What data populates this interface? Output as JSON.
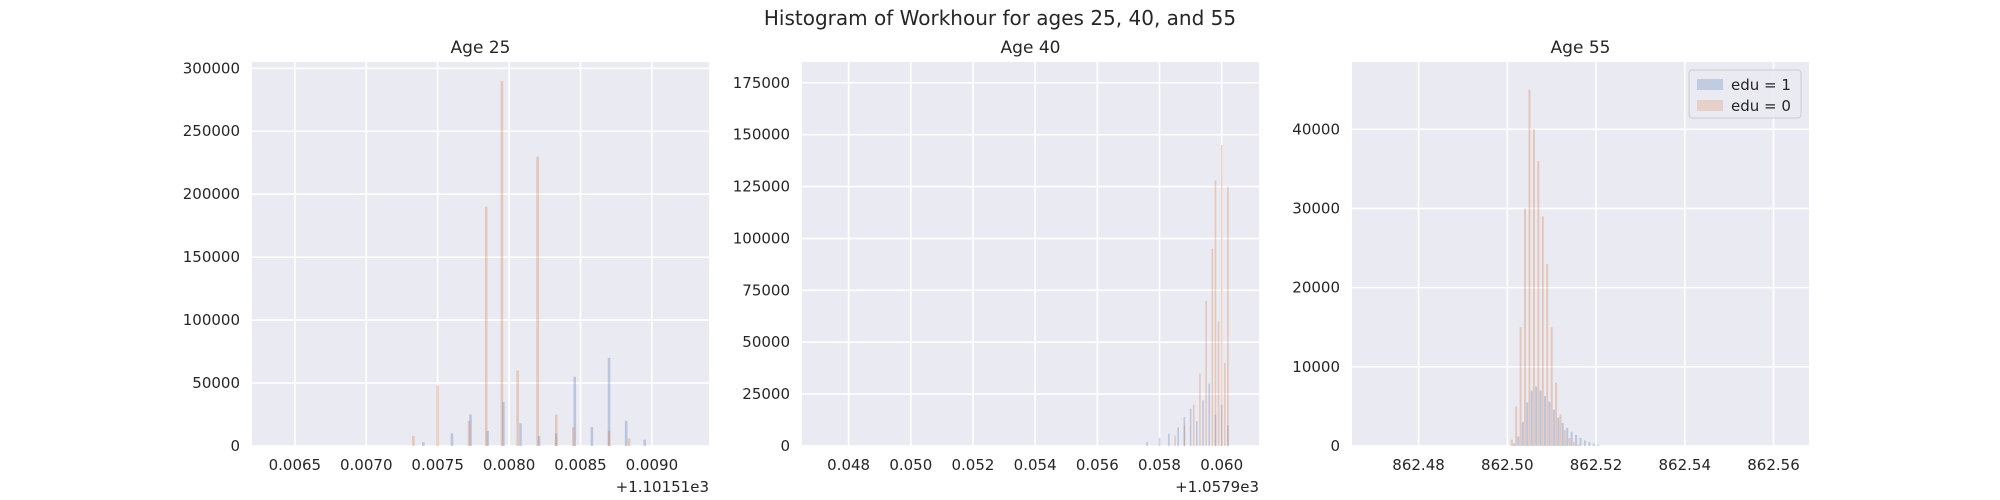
{
  "figure": {
    "title": "Histogram of Workhour for ages 25, 40, and 55"
  },
  "colors": {
    "background": "#eaeaf2",
    "grid": "#ffffff",
    "edu1": "#4c72b0",
    "edu0": "#dd8452",
    "overlap": "#55a868"
  },
  "chart_data": [
    {
      "type": "bar",
      "title": "Age 25",
      "xlim": [
        0.0062,
        0.0094
      ],
      "ylim": [
        0,
        305000
      ],
      "x_offset_label": "+1.10151e3",
      "xticks": [
        0.0065,
        0.007,
        0.0075,
        0.008,
        0.0085,
        0.009
      ],
      "xtick_labels": [
        "0.0065",
        "0.0070",
        "0.0075",
        "0.0080",
        "0.0085",
        "0.0090"
      ],
      "yticks": [
        0,
        50000,
        100000,
        150000,
        200000,
        250000,
        300000
      ],
      "ytick_labels": [
        "0",
        "50000",
        "100000",
        "150000",
        "200000",
        "250000",
        "300000"
      ],
      "bin_width": 1.8e-05,
      "series": [
        {
          "series_key": "edu1",
          "x": [
            0.0074,
            0.0076,
            0.00773,
            0.00785,
            0.00796,
            0.00808,
            0.00821,
            0.00833,
            0.00846,
            0.00858,
            0.0087,
            0.00882,
            0.00895
          ],
          "values": [
            3000,
            10000,
            25000,
            12000,
            35000,
            18000,
            8000,
            10000,
            55000,
            15000,
            70000,
            20000,
            5000
          ]
        },
        {
          "series_key": "edu0",
          "x": [
            0.00733,
            0.0075,
            0.00772,
            0.00784,
            0.00795,
            0.00806,
            0.0082,
            0.00833,
            0.00845,
            0.0087,
            0.00884
          ],
          "values": [
            8000,
            48000,
            20000,
            190000,
            290000,
            60000,
            230000,
            25000,
            15000,
            12000,
            6000
          ]
        }
      ]
    },
    {
      "type": "bar",
      "title": "Age 40",
      "xlim": [
        0.0465,
        0.0612
      ],
      "ylim": [
        0,
        185000
      ],
      "x_offset_label": "+1.0579e3",
      "xticks": [
        0.048,
        0.05,
        0.052,
        0.054,
        0.056,
        0.058,
        0.06
      ],
      "xtick_labels": [
        "0.048",
        "0.050",
        "0.052",
        "0.054",
        "0.056",
        "0.058",
        "0.060"
      ],
      "yticks": [
        0,
        25000,
        50000,
        75000,
        100000,
        125000,
        150000,
        175000
      ],
      "ytick_labels": [
        "0",
        "25000",
        "50000",
        "75000",
        "100000",
        "125000",
        "150000",
        "175000"
      ],
      "bin_width": 5e-05,
      "series": [
        {
          "series_key": "edu1",
          "x": [
            0.0576,
            0.058,
            0.0583,
            0.0586,
            0.0588,
            0.059,
            0.0592,
            0.0594,
            0.0596,
            0.0598,
            0.06,
            0.0602
          ],
          "values": [
            2000,
            4000,
            6000,
            9000,
            14000,
            18000,
            12000,
            22000,
            30000,
            15000,
            20000,
            10000
          ]
        },
        {
          "series_key": "edu0",
          "x": [
            0.0585,
            0.0588,
            0.0591,
            0.0593,
            0.0595,
            0.0597,
            0.0598,
            0.0599,
            0.06,
            0.0601,
            0.0602
          ],
          "values": [
            5000,
            10000,
            20000,
            35000,
            70000,
            95000,
            128000,
            60000,
            145000,
            40000,
            125000
          ]
        }
      ]
    },
    {
      "type": "bar",
      "title": "Age 55",
      "xlim": [
        862.465,
        862.568
      ],
      "ylim": [
        0,
        48500
      ],
      "x_offset_label": "",
      "xticks": [
        862.48,
        862.5,
        862.52,
        862.54,
        862.56
      ],
      "xtick_labels": [
        "862.48",
        "862.50",
        "862.52",
        "862.54",
        "862.56"
      ],
      "yticks": [
        0,
        10000,
        20000,
        30000,
        40000
      ],
      "ytick_labels": [
        "0",
        "10000",
        "20000",
        "30000",
        "40000"
      ],
      "bin_width": 0.00045,
      "legend": {
        "location": "upper right",
        "entries": [
          {
            "label": "edu = 1",
            "series_key": "edu1"
          },
          {
            "label": "edu = 0",
            "series_key": "edu0"
          }
        ]
      },
      "series": [
        {
          "series_key": "edu1",
          "x": [
            862.5015,
            862.5025,
            862.5035,
            862.5045,
            862.5055,
            862.5065,
            862.5075,
            862.5085,
            862.5095,
            862.5105,
            862.5115,
            862.5125,
            862.5135,
            862.5145,
            862.5155,
            862.5165,
            862.5175,
            862.5185,
            862.5195,
            862.5205
          ],
          "values": [
            300,
            1200,
            3000,
            5500,
            7000,
            7500,
            7000,
            6300,
            5600,
            4600,
            3600,
            2900,
            2300,
            1800,
            1400,
            1000,
            700,
            500,
            300,
            150
          ]
        },
        {
          "series_key": "edu0",
          "x": [
            862.501,
            862.502,
            862.503,
            862.504,
            862.505,
            862.506,
            862.507,
            862.508,
            862.509,
            862.51,
            862.511,
            862.512,
            862.513,
            862.514,
            862.515,
            862.516
          ],
          "values": [
            800,
            5000,
            15000,
            30000,
            45000,
            40000,
            36000,
            29000,
            23000,
            15000,
            8000,
            4000,
            2000,
            1000,
            500,
            200
          ]
        }
      ]
    }
  ]
}
